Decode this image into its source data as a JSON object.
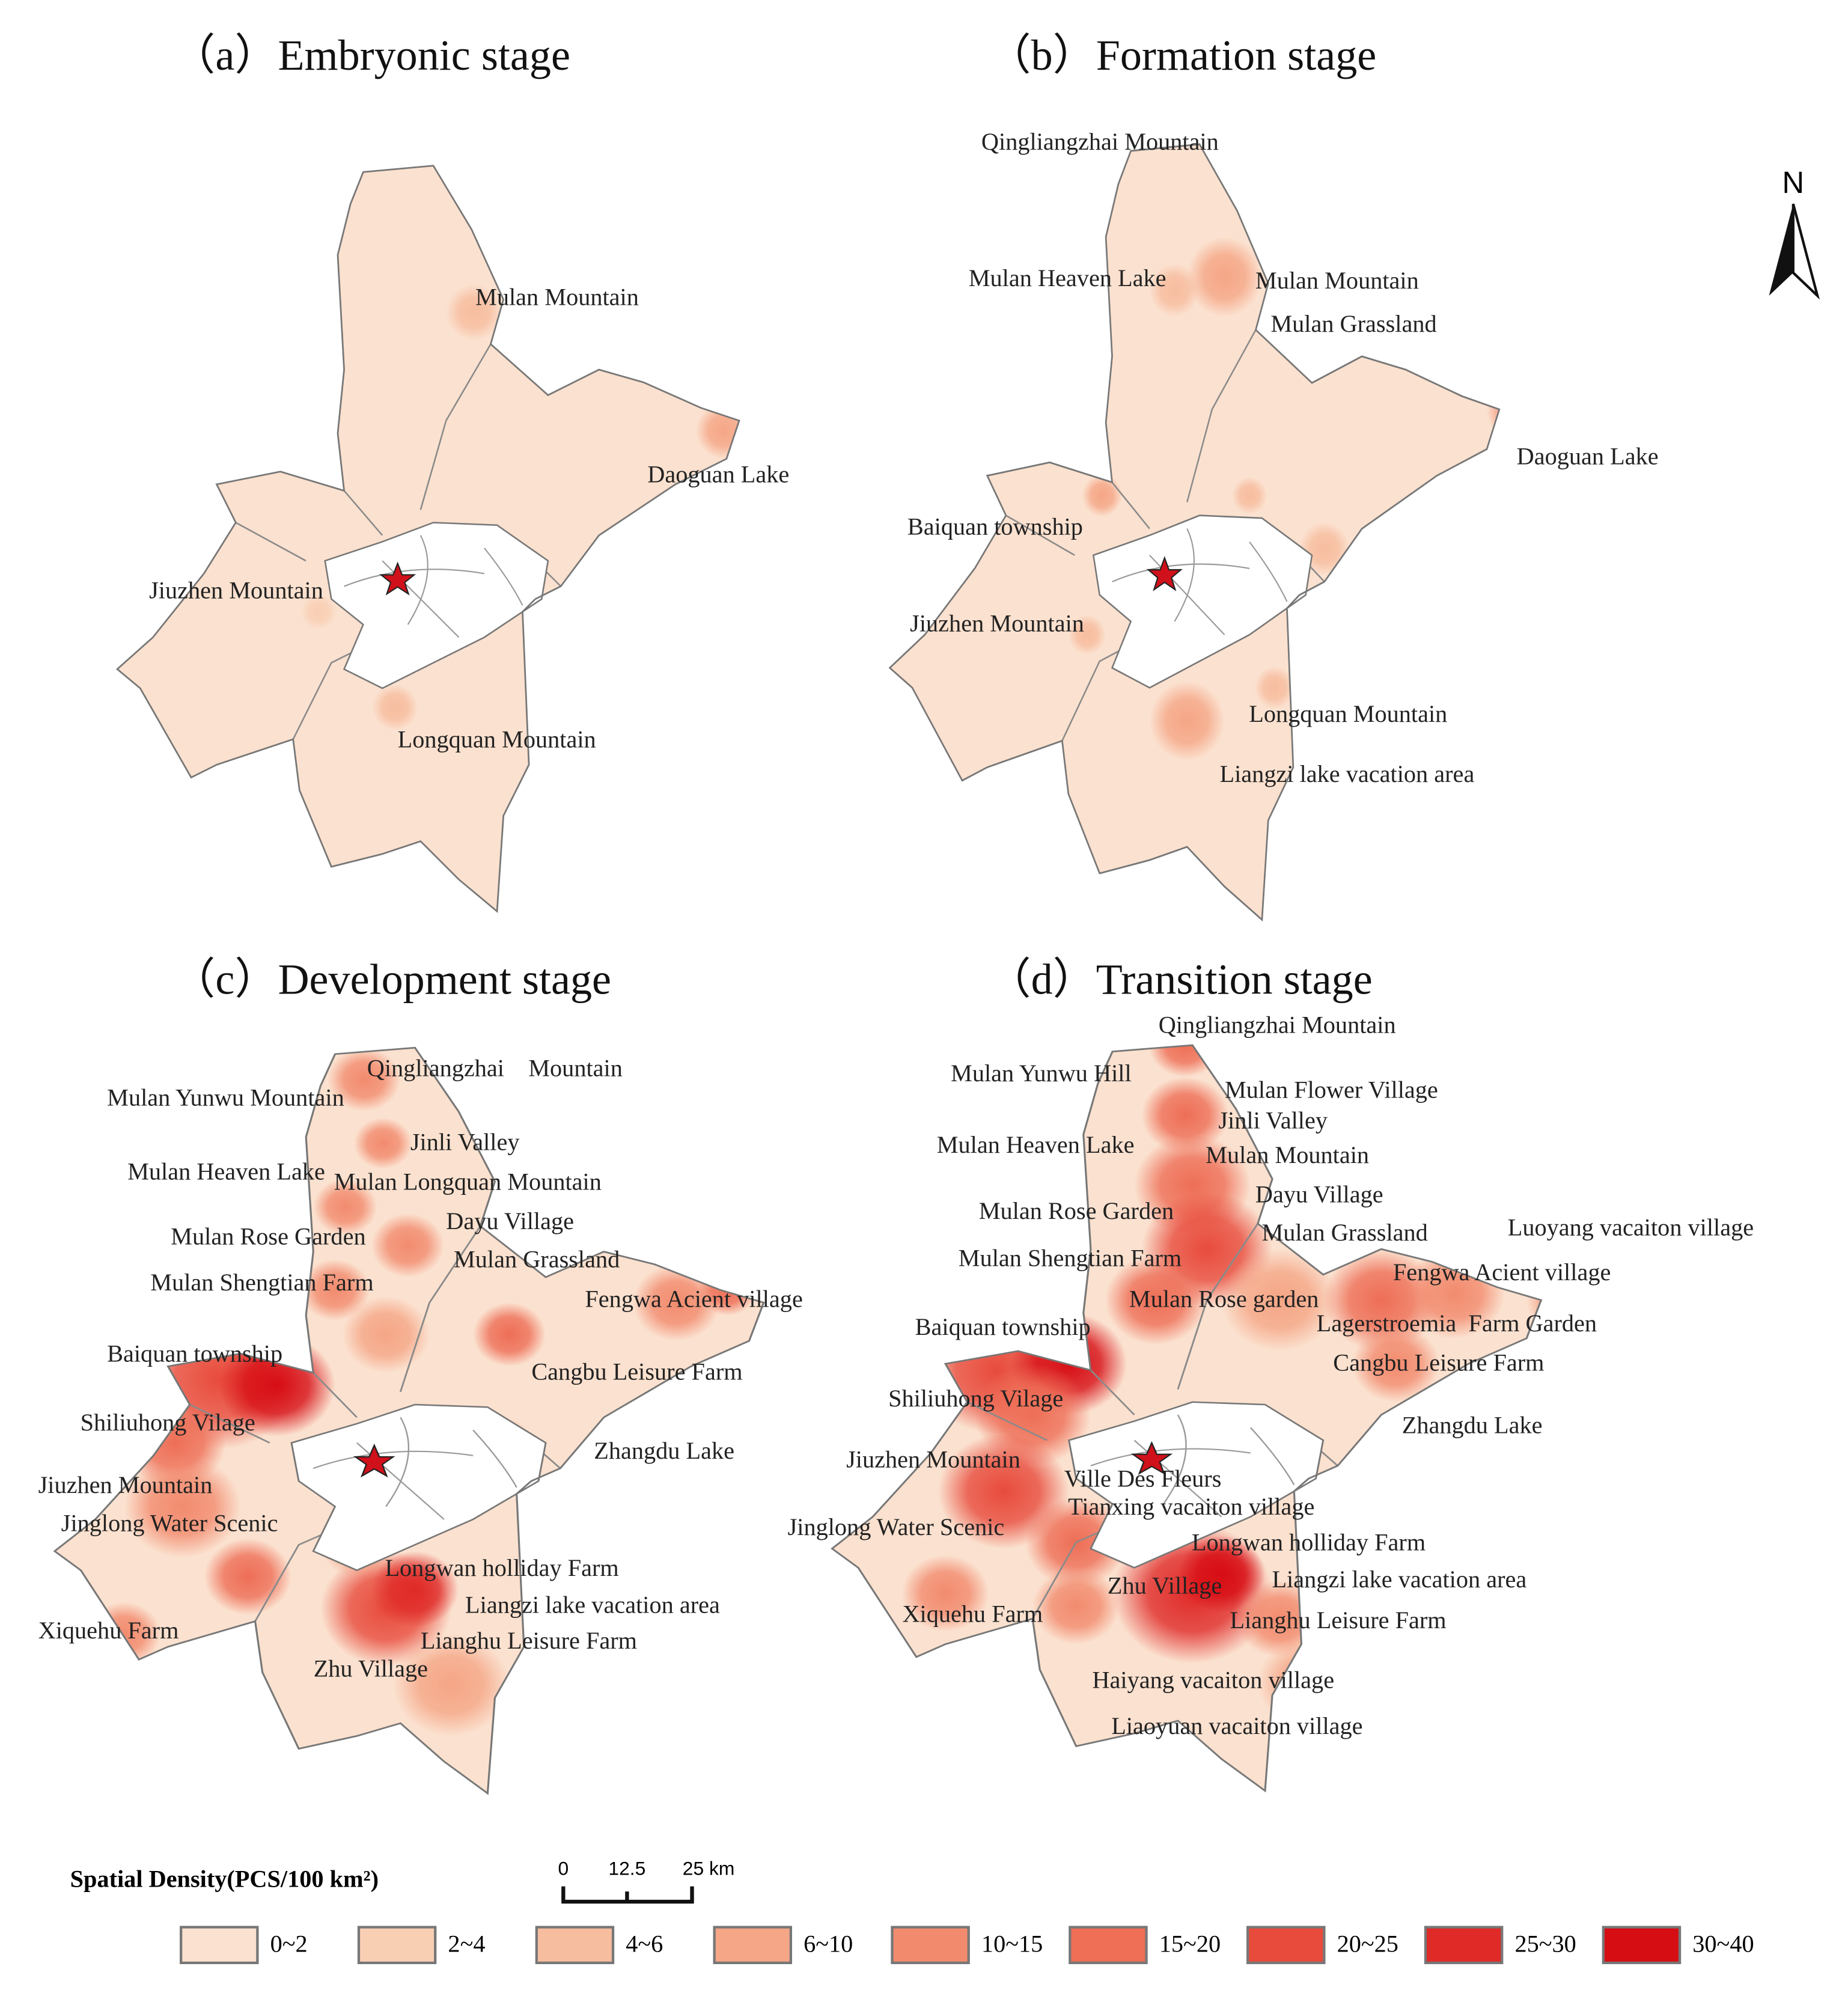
{
  "panels": [
    {
      "title": "（a）Embryonic stage",
      "labels": [
        "Mulan Mountain",
        "Daoguan Lake",
        "Jiuzhen Mountain",
        "Longquan Mountain"
      ]
    },
    {
      "title": "（b）Formation stage",
      "labels": [
        "Qingliangzhai Mountain",
        "Mulan Heaven Lake",
        "Mulan Mountain",
        "Mulan Grassland",
        "Daoguan Lake",
        "Baiquan township",
        "Jiuzhen Mountain",
        "Longquan Mountain",
        "Liangzi lake vacation area"
      ]
    },
    {
      "title": "（c）Development stage",
      "labels": [
        "Qingliangzhai    Mountain",
        "Mulan Yunwu Mountain",
        "Jinli Valley",
        "Mulan Heaven Lake",
        "Mulan Longquan Mountain",
        "Mulan Rose Garden",
        "Dayu Village",
        "Mulan Grassland",
        "Mulan Shengtian Farm",
        "Fengwa Acient village",
        "Baiquan township",
        "Cangbu Leisure Farm",
        "Shiliuhong Vilage",
        "Zhangdu Lake",
        "Jiuzhen Mountain",
        "Jinglong Water Scenic",
        "Longwan holliday Farm",
        "Liangzi lake vacation area",
        "Xiquehu Farm",
        "Lianghu Leisure Farm",
        "Zhu Village"
      ]
    },
    {
      "title": "（d）Transition stage",
      "labels": [
        "Qingliangzhai Mountain",
        "Mulan Yunwu Hill",
        "Mulan Flower Village",
        "Jinli Valley",
        "Mulan Heaven Lake",
        "Mulan Mountain",
        "Dayu Village",
        "Mulan Rose Garden",
        "Mulan Grassland",
        "Luoyang vacaiton village",
        "Mulan Shengtian Farm",
        "Fengwa Acient village",
        "Mulan Rose garden",
        "Lagerstroemia  Farm Garden",
        "Baiquan township",
        "Cangbu Leisure Farm",
        "Shiliuhong Vilage",
        "Zhangdu Lake",
        "Jiuzhen Mountain",
        "Ville Des Fleurs",
        "Tianxing vacaiton village",
        "Jinglong Water Scenic",
        "Longwan holliday Farm",
        "Zhu Village",
        "Liangzi lake vacation area",
        "Xiquehu Farm",
        "Lianghu Leisure Farm",
        "Haiyang vacaiton village",
        "Liaoyuan vacaiton village"
      ]
    }
  ],
  "north": "N",
  "scale_bar": {
    "labels": [
      "0",
      "12.5",
      "25 km"
    ]
  },
  "legend": {
    "title": "Spatial Density(PCS/100  km²)",
    "items": [
      {
        "label": "0~2",
        "color": "#fbe1cf"
      },
      {
        "label": "2~4",
        "color": "#f9cfb4"
      },
      {
        "label": "4~6",
        "color": "#f7bd9f"
      },
      {
        "label": "6~10",
        "color": "#f5a686"
      },
      {
        "label": "10~15",
        "color": "#f28b6e"
      },
      {
        "label": "15~20",
        "color": "#ee6e56"
      },
      {
        "label": "20~25",
        "color": "#e84b3c"
      },
      {
        "label": "25~30",
        "color": "#e02a28"
      },
      {
        "label": "30~40",
        "color": "#d70d14"
      }
    ]
  }
}
